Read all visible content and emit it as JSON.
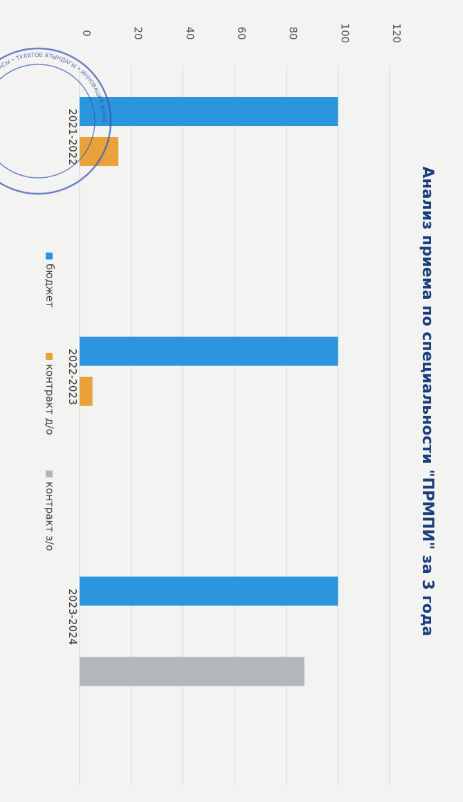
{
  "chart_data": {
    "type": "bar",
    "title": "Анализ приема по специальности \"ПРМПИ\" за 3 года",
    "categories": [
      "2021-2022",
      "2022-2023",
      "2023-2024"
    ],
    "series": [
      {
        "name": "бюджет",
        "values": [
          100,
          100,
          100
        ],
        "color": "#2b95de"
      },
      {
        "name": "контракт д/о",
        "values": [
          15,
          5,
          0
        ],
        "color": "#e8a23a"
      },
      {
        "name": "контракт з/о",
        "values": [
          0,
          0,
          87
        ],
        "color": "#b4b7ba"
      }
    ],
    "ylim": [
      0,
      120
    ],
    "yticks": [
      0,
      20,
      40,
      60,
      80,
      100,
      120
    ],
    "grid": true,
    "legend_position": "bottom",
    "orientation": "rotated 90° clockwise"
  },
  "stamp": {
    "text": "КЫРГЫЗ РЕСПУБЛИКАСЫ • ТУЛАТОВ АТЫНДАГЫ • ИННОВАЦИЯ ЖАНА"
  }
}
